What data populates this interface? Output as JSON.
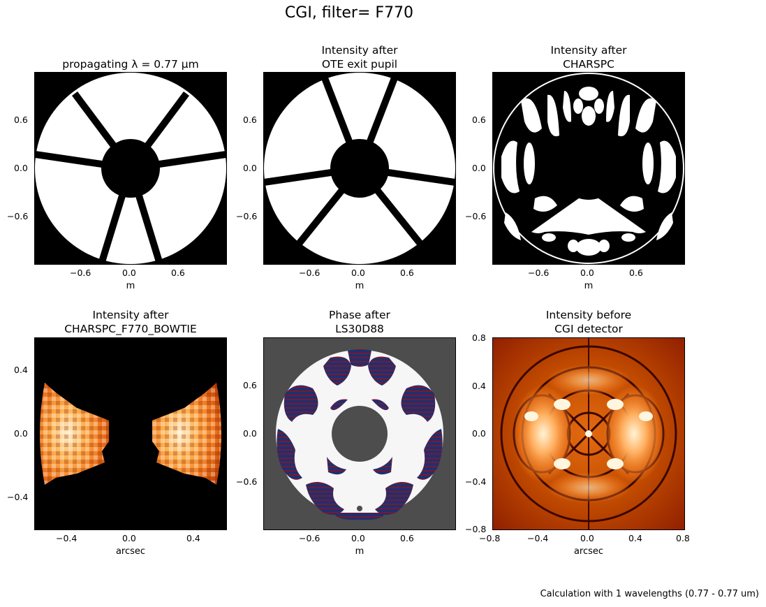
{
  "figure": {
    "suptitle": "CGI, filter= F770",
    "footer": "Calculation with 1 wavelengths (0.77 - 0.77 um)"
  },
  "chart_data": [
    {
      "type": "heatmap",
      "title_lines": [
        "propagating λ =  0.77 μm"
      ],
      "xlabel": "m",
      "ylabel": "",
      "xticks": [
        "−0.6",
        "0.0",
        "0.6"
      ],
      "yticks": [
        "0.6",
        "0.0",
        "−0.6"
      ],
      "xlim": [
        -1.2,
        1.2
      ],
      "ylim": [
        -1.2,
        1.2
      ],
      "colormap": "gray",
      "content": "input pupil: annulus with central obscuration and 6 spiders"
    },
    {
      "type": "heatmap",
      "title_lines": [
        "Intensity after",
        "OTE exit pupil"
      ],
      "xlabel": "m",
      "ylabel": "",
      "xticks": [
        "−0.6",
        "0.0",
        "0.6"
      ],
      "yticks": [
        "0.6",
        "0.0",
        "−0.6"
      ],
      "xlim": [
        -1.2,
        1.2
      ],
      "ylim": [
        -1.2,
        1.2
      ],
      "colormap": "gray"
    },
    {
      "type": "heatmap",
      "title_lines": [
        "Intensity after",
        "CHARSPC"
      ],
      "xlabel": "m",
      "ylabel": "",
      "xticks": [
        "−0.6",
        "0.0",
        "0.6"
      ],
      "yticks": [
        "0.6",
        "0.0",
        "−0.6"
      ],
      "xlim": [
        -1.2,
        1.2
      ],
      "ylim": [
        -1.2,
        1.2
      ],
      "colormap": "gray"
    },
    {
      "type": "heatmap",
      "title_lines": [
        "Intensity after",
        "CHARSPC_F770_BOWTIE"
      ],
      "xlabel": "arcsec",
      "ylabel": "",
      "xticks": [
        "−0.4",
        "0.0",
        "0.4"
      ],
      "yticks": [
        "0.4",
        "0.0",
        "−0.4"
      ],
      "xlim": [
        -0.6,
        0.6
      ],
      "ylim": [
        -0.6,
        0.6
      ],
      "colormap": "gist_heat"
    },
    {
      "type": "heatmap",
      "title_lines": [
        "Phase after",
        "LS30D88"
      ],
      "xlabel": "m",
      "ylabel": "",
      "xticks": [
        "−0.6",
        "0.0",
        "0.6"
      ],
      "yticks": [
        "0.6",
        "0.0",
        "−0.6"
      ],
      "xlim": [
        -1.2,
        1.2
      ],
      "ylim": [
        -1.2,
        1.2
      ],
      "colormap": "RdBu"
    },
    {
      "type": "heatmap",
      "title_lines": [
        "Intensity before",
        "CGI detector"
      ],
      "xlabel": "arcsec",
      "ylabel": "",
      "xticks": [
        "−0.8",
        "−0.4",
        "0.0",
        "0.4",
        "0.8"
      ],
      "yticks": [
        "0.8",
        "0.4",
        "0.0",
        "−0.4",
        "−0.8"
      ],
      "xlim": [
        -0.8,
        0.8
      ],
      "ylim": [
        -0.8,
        0.8
      ],
      "colormap": "gist_heat"
    }
  ]
}
